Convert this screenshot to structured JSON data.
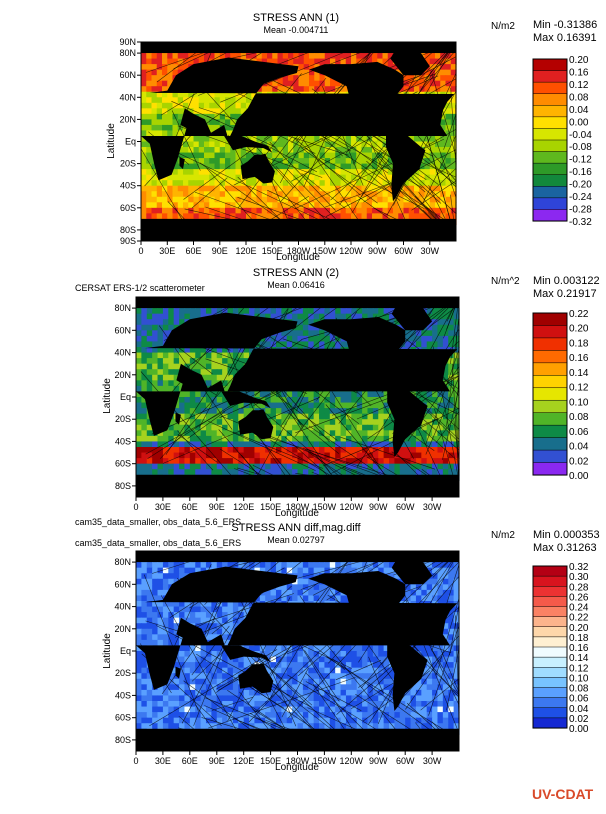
{
  "panels": [
    {
      "title": "STRESS ANN (1)",
      "mean": "Mean -0.004711",
      "units": "N/m2",
      "min": "Min -0.31386",
      "max": "Max 0.16391",
      "source": "",
      "lat_ticks": [
        "90N",
        "80N",
        "60N",
        "40N",
        "20N",
        "Eq",
        "20S",
        "40S",
        "60S",
        "80S",
        "90S"
      ],
      "lon_ticks": [
        "0",
        "30E",
        "60E",
        "90E",
        "120E",
        "150E",
        "180W",
        "150W",
        "120W",
        "90W",
        "60W",
        "30W"
      ],
      "xlabel": "Longitude",
      "ylabel": "Latitude",
      "legend_labels": [
        "0.20",
        "0.16",
        "0.12",
        "0.08",
        "0.04",
        "0.00",
        "-0.04",
        "-0.08",
        "-0.12",
        "-0.16",
        "-0.20",
        "-0.24",
        "-0.28",
        "-0.32"
      ],
      "legend_colors": [
        "#b40000",
        "#e02020",
        "#ff5000",
        "#ff8c00",
        "#ffb400",
        "#ffe000",
        "#d7e600",
        "#a8d400",
        "#5fb81e",
        "#2e9a28",
        "#12883c",
        "#1a64a0",
        "#2f44d8",
        "#8c28f0"
      ],
      "field_style": "warm"
    },
    {
      "title": "STRESS ANN (2)",
      "mean": "Mean 0.06416",
      "units": "N/m^2",
      "min": "Min 0.003122",
      "max": "Max 0.21917",
      "source": "CERSAT ERS-1/2 scatterometer",
      "lat_ticks": [
        "80N",
        "60N",
        "40N",
        "20N",
        "Eq",
        "20S",
        "40S",
        "60S",
        "80S"
      ],
      "lon_ticks": [
        "0",
        "30E",
        "60E",
        "90E",
        "120E",
        "150E",
        "180W",
        "150W",
        "120W",
        "90W",
        "60W",
        "30W"
      ],
      "xlabel": "Longitude",
      "ylabel": "Latitude",
      "legend_labels": [
        "0.22",
        "0.20",
        "0.18",
        "0.16",
        "0.14",
        "0.12",
        "0.10",
        "0.08",
        "0.06",
        "0.04",
        "0.02",
        "0.00"
      ],
      "legend_colors": [
        "#a00000",
        "#d01010",
        "#f03000",
        "#ff6a00",
        "#ffa000",
        "#ffd200",
        "#e6e600",
        "#a6d21e",
        "#50b428",
        "#0e8a46",
        "#186e8c",
        "#3250d2",
        "#8a28f0"
      ],
      "field_style": "mixed"
    },
    {
      "title": "STRESS ANN diff,mag.diff",
      "mean": "Mean 0.02797",
      "units": "N/m2",
      "min": "Min 0.000353",
      "max": "Max 0.31263",
      "source": "cam35_data_smaller, obs_data_5.6_ERS",
      "source2": "cam35_data_smaller, obs_data_5.6_ERS",
      "lat_ticks": [
        "80N",
        "60N",
        "40N",
        "20N",
        "Eq",
        "20S",
        "40S",
        "60S",
        "80S"
      ],
      "lon_ticks": [
        "0",
        "30E",
        "60E",
        "90E",
        "120E",
        "150E",
        "180W",
        "150W",
        "120W",
        "90W",
        "60W",
        "30W"
      ],
      "xlabel": "Longitude",
      "ylabel": "Latitude",
      "legend_labels": [
        "0.32",
        "0.30",
        "0.28",
        "0.26",
        "0.24",
        "0.22",
        "0.20",
        "0.18",
        "0.16",
        "0.14",
        "0.12",
        "0.10",
        "0.08",
        "0.06",
        "0.04",
        "0.02",
        "0.00"
      ],
      "legend_colors": [
        "#b40014",
        "#d8141e",
        "#ec3232",
        "#f55a4a",
        "#fa8264",
        "#fcb48c",
        "#fed7aa",
        "#fff0d2",
        "#f0fcff",
        "#c8f0ff",
        "#a0dcff",
        "#78c3ff",
        "#5aa0ff",
        "#3c78f0",
        "#1e50e6",
        "#1428d2"
      ],
      "field_style": "blue"
    }
  ],
  "logo": "UV-CDAT"
}
